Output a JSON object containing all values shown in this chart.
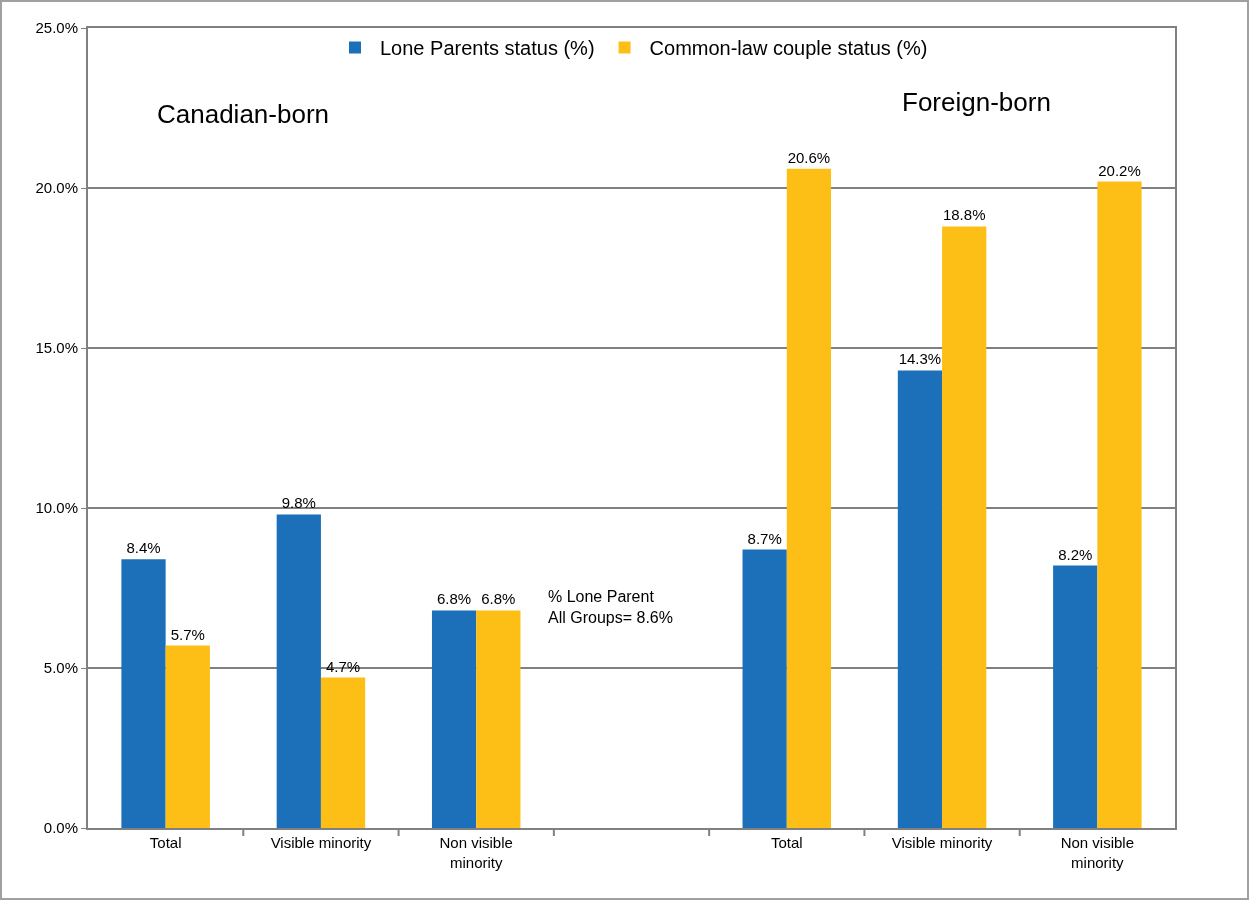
{
  "chart_data": {
    "type": "bar",
    "categories": [
      "Total",
      "Visible minority",
      "Non visible minority",
      null,
      "Total",
      "Visible minority",
      "Non visible minority"
    ],
    "series": [
      {
        "name": "Lone Parents status (%)",
        "color": "#1b70b9",
        "values": [
          8.4,
          9.8,
          6.8,
          null,
          8.7,
          14.3,
          8.2
        ],
        "value_labels": [
          "8.4%",
          "9.8%",
          "6.8%",
          null,
          "8.7%",
          "14.3%",
          "8.2%"
        ]
      },
      {
        "name": "Common-law couple status (%)",
        "color": "#fdbe16",
        "values": [
          5.7,
          4.7,
          6.8,
          null,
          20.6,
          18.8,
          20.2
        ],
        "value_labels": [
          "5.7%",
          "4.7%",
          "6.8%",
          null,
          "20.6%",
          "18.8%",
          "20.2%"
        ]
      }
    ],
    "ylim": [
      0,
      25
    ],
    "yticks": [
      {
        "value": 0,
        "label": "0.0%"
      },
      {
        "value": 5,
        "label": "5.0%"
      },
      {
        "value": 10,
        "label": "10.0%"
      },
      {
        "value": 15,
        "label": "15.0%"
      },
      {
        "value": 20,
        "label": "20.0%"
      },
      {
        "value": 25,
        "label": "25.0%"
      }
    ],
    "annotations": [
      "Canadian-born",
      "Foreign-born",
      "% Lone Parent\nAll Groups= 8.6%"
    ],
    "grid": "y",
    "legend": "top"
  }
}
